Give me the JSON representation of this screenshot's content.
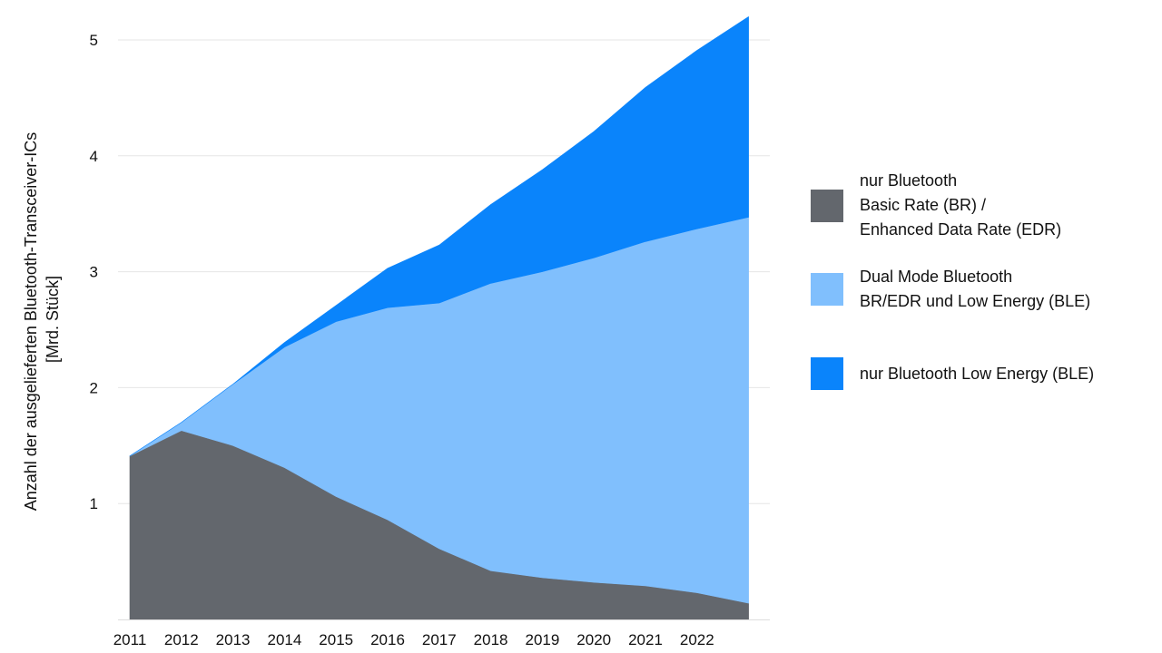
{
  "chart_data": {
    "type": "area",
    "stacked": true,
    "x": [
      2011,
      2012,
      2013,
      2014,
      2015,
      2016,
      2017,
      2018,
      2019,
      2020,
      2021,
      2022,
      2023
    ],
    "x_tick_labels": [
      "2011",
      "2012",
      "2013",
      "2014",
      "2015",
      "2016",
      "2017",
      "2018",
      "2019",
      "2020",
      "2021",
      "2022"
    ],
    "ylabel_lines": [
      "Anzahl der ausgelieferten Bluetooth-Transceiver-ICs",
      "[Mrd. Stück]"
    ],
    "xlabel": "",
    "ylim": [
      0,
      5.2
    ],
    "yticks": [
      1,
      2,
      3,
      4,
      5
    ],
    "grid": true,
    "legend_position": "right",
    "series": [
      {
        "name_lines": [
          "nur Bluetooth",
          "Basic Rate (BR) /",
          "Enhanced Data Rate (EDR)"
        ],
        "color": "#63676d",
        "values": [
          1.41,
          1.63,
          1.5,
          1.31,
          1.06,
          0.86,
          0.61,
          0.42,
          0.36,
          0.32,
          0.29,
          0.23,
          0.14
        ]
      },
      {
        "name_lines": [
          "Dual Mode Bluetooth",
          "BR/EDR und Low Energy (BLE)"
        ],
        "color": "#80bffd",
        "values": [
          0.0,
          0.07,
          0.53,
          1.04,
          1.51,
          1.83,
          2.12,
          2.48,
          2.64,
          2.8,
          2.97,
          3.14,
          3.33
        ]
      },
      {
        "name_lines": [
          "nur Bluetooth Low Energy (BLE)"
        ],
        "color": "#0a84fb",
        "values": [
          0.0,
          0.0,
          0.0,
          0.04,
          0.14,
          0.34,
          0.5,
          0.68,
          0.88,
          1.09,
          1.33,
          1.54,
          1.73
        ]
      }
    ]
  }
}
